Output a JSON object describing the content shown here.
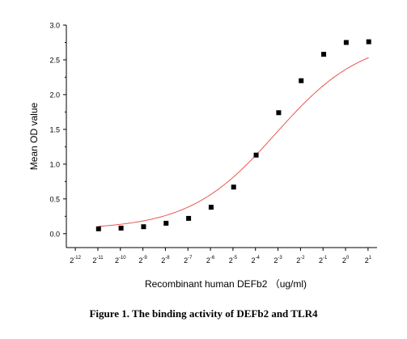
{
  "caption": "Figure 1. The binding activity of DEFb2 and TLR4",
  "chart_data": {
    "type": "scatter",
    "xlabel": "Recombinant human DEFb2 （ug/ml)",
    "ylabel": "Mean OD value",
    "x_scale": "log2",
    "x_tick_exponents": [
      -12,
      -11,
      -10,
      -9,
      -8,
      -7,
      -6,
      -5,
      -4,
      -3,
      -2,
      -1,
      0,
      1
    ],
    "y_ticks": [
      "0.0",
      "0.5",
      "1.0",
      "1.5",
      "2.0",
      "2.5",
      "3.0"
    ],
    "ylim": [
      -0.2,
      3.0
    ],
    "xlim_exponent": [
      -12.4,
      1.4
    ],
    "series": [
      {
        "x_exponent": [
          -10.97,
          -9.97,
          -8.97,
          -7.97,
          -6.97,
          -5.97,
          -4.97,
          -3.97,
          -2.97,
          -1.97,
          -0.97,
          0.03,
          1.03
        ],
        "values": [
          0.07,
          0.08,
          0.1,
          0.15,
          0.22,
          0.38,
          0.67,
          1.13,
          1.74,
          2.2,
          2.58,
          2.75,
          2.76
        ],
        "marker_color": "#000000",
        "fit_color": "#e8574f"
      }
    ],
    "fit": {
      "type": "4PL",
      "bottom": 0.06,
      "top": 2.82,
      "log2_ec50": -3.1,
      "hill": 0.75
    },
    "grid": false
  }
}
